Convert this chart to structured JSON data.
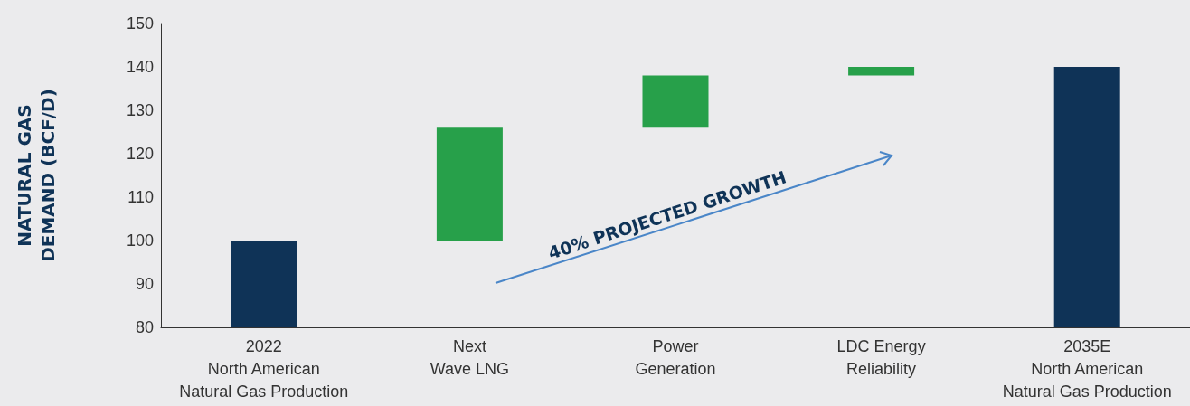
{
  "chart_data": {
    "type": "bar",
    "ylabel": "NATURAL GAS\nDEMAND (BCF/D)",
    "categories": [
      "2022\nNorth American\nNatural Gas Production",
      "Next\nWave LNG",
      "Power\nGeneration",
      "LDC Energy\nReliability",
      "2035E\nNorth American\nNatural Gas Production"
    ],
    "values": [
      100,
      26,
      12,
      2,
      140
    ],
    "base": [
      null,
      100,
      126,
      138,
      null
    ],
    "colors": [
      "#0f3357",
      "#27a04a",
      "#27a04a",
      "#27a04a",
      "#0f3357"
    ],
    "ylim": [
      80,
      150
    ],
    "yticks": [
      80,
      90,
      100,
      110,
      120,
      130,
      140,
      150
    ],
    "grid": false,
    "annotations": [
      "40% PROJECTED GROWTH"
    ]
  }
}
